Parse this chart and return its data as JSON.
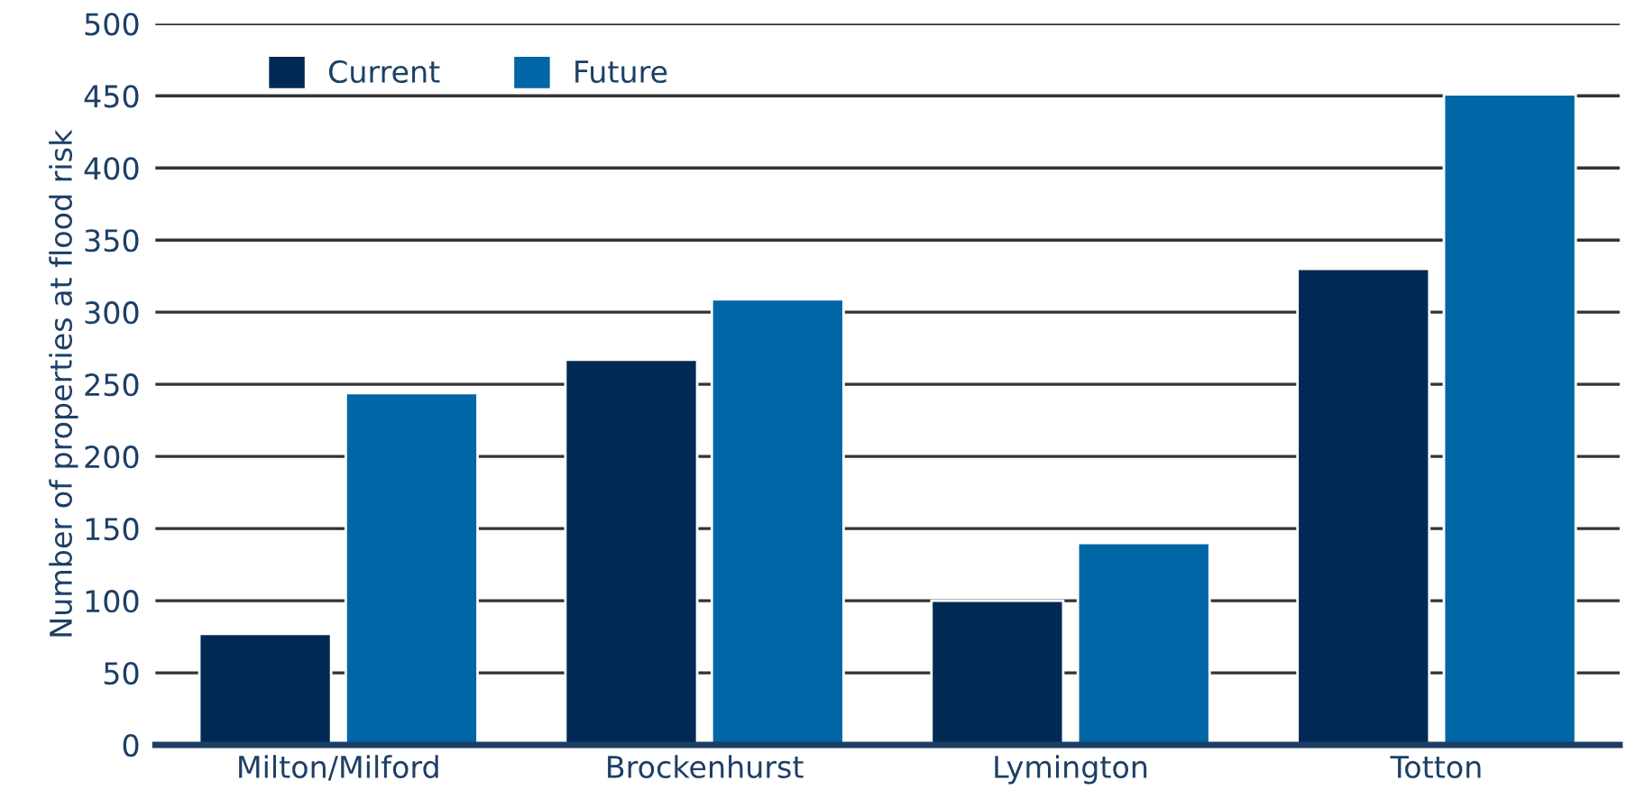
{
  "chart_data": {
    "type": "bar",
    "ylabel": "Number of properties at flood risk",
    "categories": [
      "Milton/Milford",
      "Brockenhurst",
      "Lymington",
      "Totton"
    ],
    "series": [
      {
        "name": "Current",
        "color": "#002a54",
        "values": [
          77,
          267,
          100,
          330
        ]
      },
      {
        "name": "Future",
        "color": "#0066a6",
        "values": [
          244,
          309,
          140,
          451
        ]
      }
    ],
    "ylim": [
      0,
      500
    ],
    "yticks": [
      0,
      50,
      100,
      150,
      200,
      250,
      300,
      350,
      400,
      450,
      500
    ],
    "grid": "y",
    "legend": "top left"
  }
}
